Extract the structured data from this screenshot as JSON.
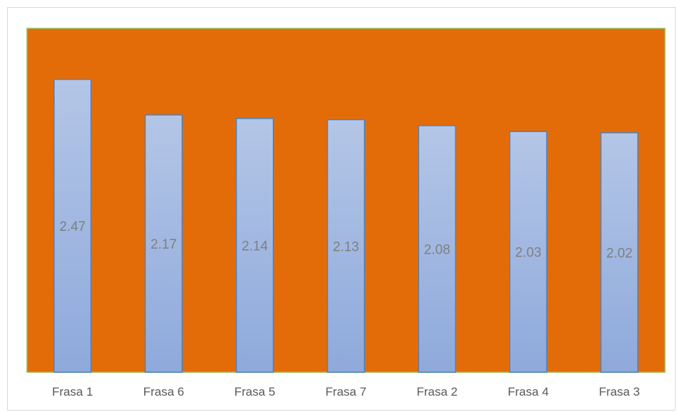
{
  "chart_data": {
    "type": "bar",
    "categories": [
      "Frasa 1",
      "Frasa 6",
      "Frasa 5",
      "Frasa 7",
      "Frasa 2",
      "Frasa 4",
      "Frasa 3"
    ],
    "values": [
      2.47,
      2.17,
      2.14,
      2.13,
      2.08,
      2.03,
      2.02
    ],
    "data_labels": [
      "2.47",
      "2.17",
      "2.14",
      "2.13",
      "2.08",
      "2.03",
      "2.02"
    ],
    "ylim": [
      0,
      2.9
    ],
    "grid": false,
    "legend": "none",
    "colors": {
      "plot_background": "#E36C09",
      "plot_border": "#9BBB59",
      "bar_top": "#B4C6E7",
      "bar_bottom": "#8EA9DB",
      "bar_border": "#4F81BD",
      "data_label": "#7F7F7F",
      "category_label": "#595959"
    }
  }
}
